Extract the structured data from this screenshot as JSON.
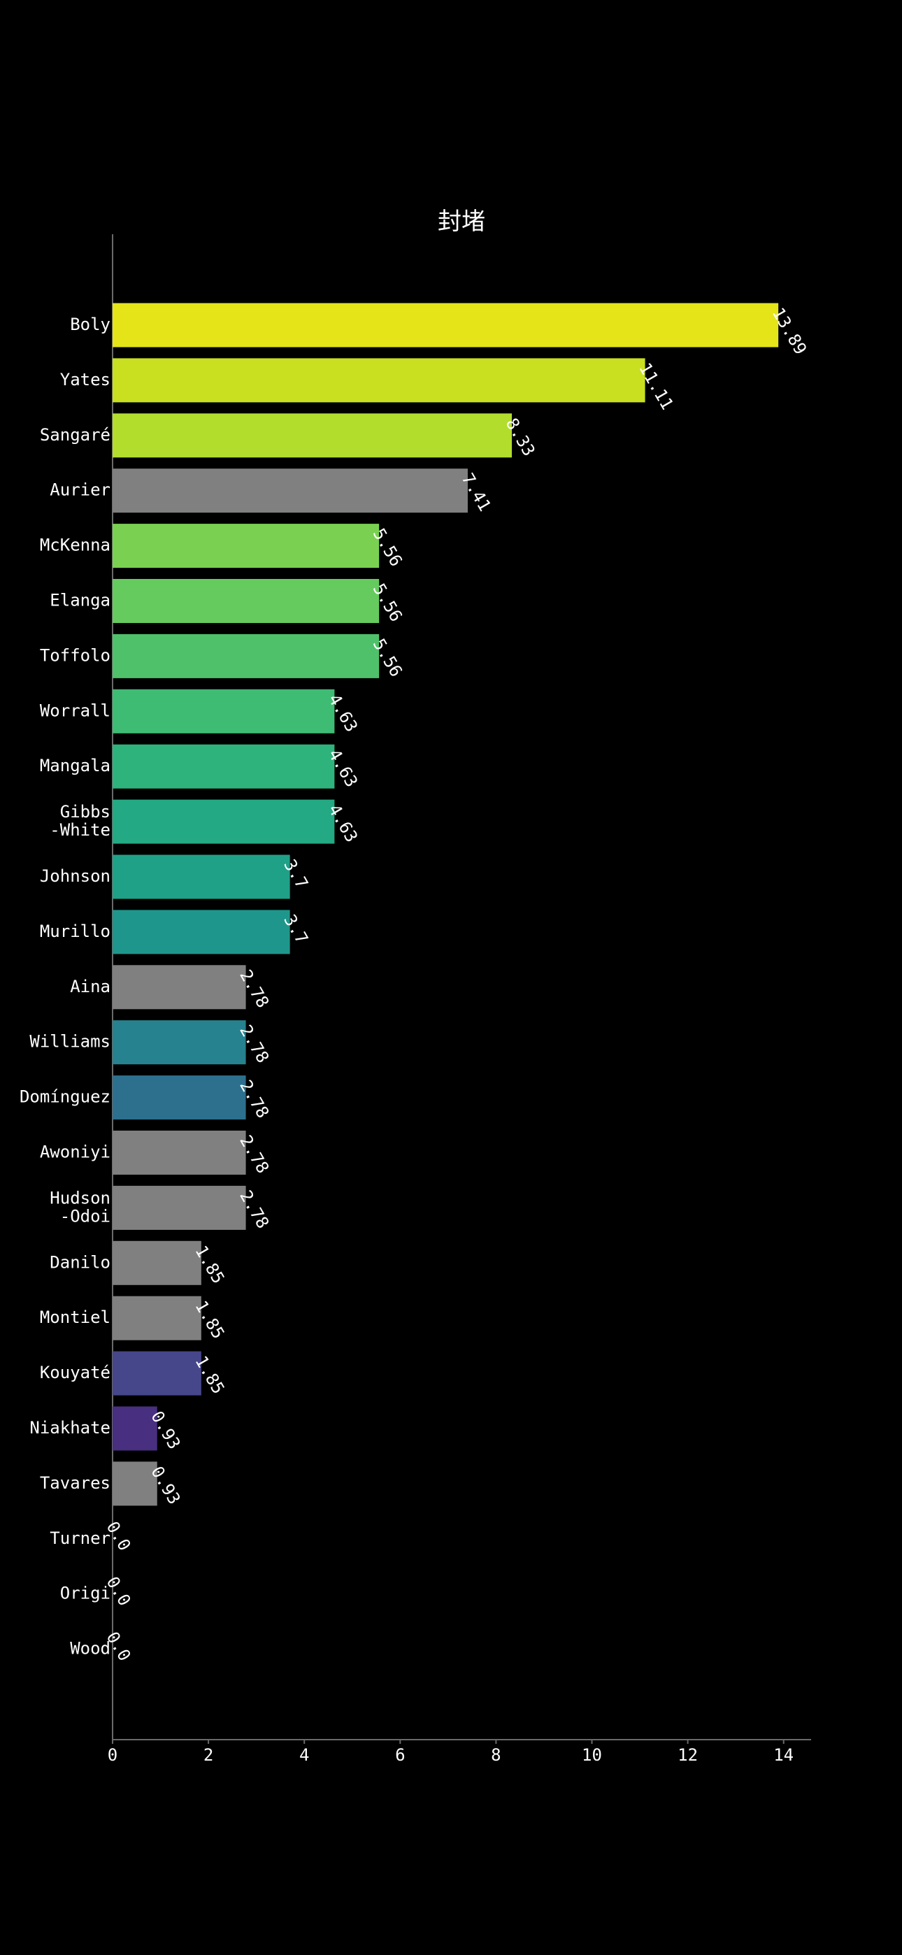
{
  "chart_data": {
    "type": "bar",
    "orientation": "horizontal",
    "title": "封堵",
    "xlabel": "",
    "ylabel": "",
    "xlim": [
      0,
      14.6
    ],
    "xticks": [
      0,
      2,
      4,
      6,
      8,
      10,
      12,
      14
    ],
    "grid": false,
    "legend": "none",
    "categories": [
      "Boly",
      "Yates",
      "Sangaré",
      "Aurier",
      "McKenna",
      "Elanga",
      "Toffolo",
      "Worrall",
      "Mangala",
      "Gibbs\n-White",
      "Johnson",
      "Murillo",
      "Aina",
      "Williams",
      "Domínguez",
      "Awoniyi",
      "Hudson\n-Odoi",
      "Danilo",
      "Montiel",
      "Kouyaté",
      "Niakhate",
      "Tavares",
      "Turner",
      "Origi",
      "Wood"
    ],
    "values": [
      13.89,
      11.11,
      8.33,
      7.41,
      5.56,
      5.56,
      5.56,
      4.63,
      4.63,
      4.63,
      3.7,
      3.7,
      2.78,
      2.78,
      2.78,
      2.78,
      2.78,
      1.85,
      1.85,
      1.85,
      0.93,
      0.93,
      0.0,
      0.0,
      0.0
    ],
    "value_labels": [
      "13.89",
      "11.11",
      "8.33",
      "7.41",
      "5.56",
      "5.56",
      "5.56",
      "4.63",
      "4.63",
      "4.63",
      "3.7",
      "3.7",
      "2.78",
      "2.78",
      "2.78",
      "2.78",
      "2.78",
      "1.85",
      "1.85",
      "1.85",
      "0.93",
      "0.93",
      "0.0",
      "0.0",
      "0.0"
    ],
    "colors": [
      "#e4e419",
      "#c8e020",
      "#b2dd2d",
      "#808080",
      "#7ad151",
      "#65cb5e",
      "#4fc16a",
      "#3fbc73",
      "#2eb37c",
      "#23a983",
      "#1fa188",
      "#1f968b",
      "#808080",
      "#26828e",
      "#2d708e",
      "#808080",
      "#808080",
      "#808080",
      "#808080",
      "#46468a",
      "#482f80",
      "#808080",
      "#440154",
      "#440154",
      "#440154"
    ],
    "background": "#000000",
    "text_color": "#ffffff",
    "axis_color": "#6a6a6a"
  }
}
